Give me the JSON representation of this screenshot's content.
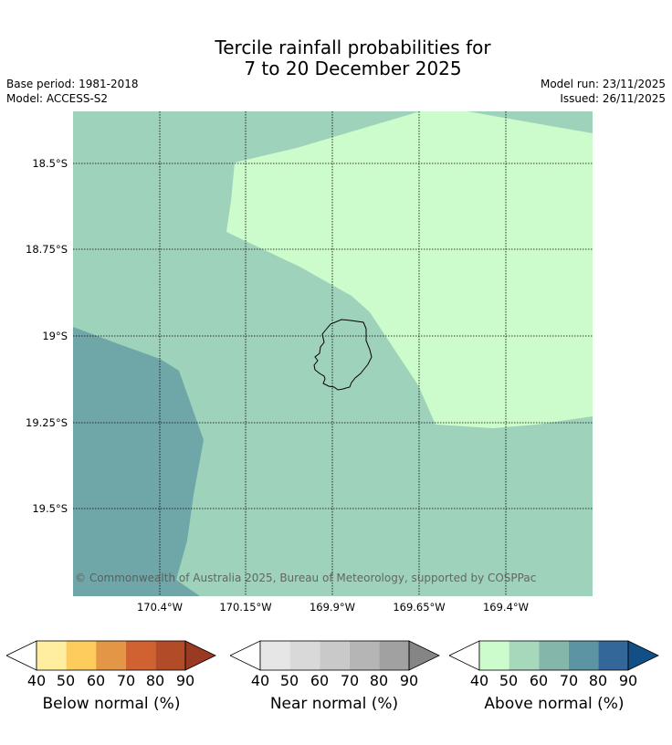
{
  "title": {
    "line1": "Tercile rainfall probabilities for",
    "line2": "7 to 20 December 2025"
  },
  "meta": {
    "base_period": "Base period: 1981-2018",
    "model": "Model: ACCESS-S2",
    "model_run": "Model run: 23/11/2025",
    "issued": "Issued: 26/11/2025"
  },
  "map": {
    "background_color": "#9fd2bb",
    "region_colors": {
      "light_green": "#ccfccb",
      "mid_teal": "#6fa7a8",
      "base": "#9fd2bb"
    },
    "lat_labels": [
      "18.5°S",
      "18.75°S",
      "19°S",
      "19.25°S",
      "19.5°S"
    ],
    "lon_labels": [
      "170.4°W",
      "170.15°W",
      "169.9°W",
      "169.65°W",
      "169.4°W"
    ],
    "copyright": "© Commonwealth of Australia 2025, Bureau of Meteorology, supported by COSPPac"
  },
  "legends": [
    {
      "label": "Below normal (%)",
      "ticks": [
        "40",
        "50",
        "60",
        "70",
        "80",
        "90"
      ],
      "colors": [
        "#ffeda0",
        "#fecc5c",
        "#e39645",
        "#d06232",
        "#b24b28",
        "#993a22"
      ]
    },
    {
      "label": "Near normal (%)",
      "ticks": [
        "40",
        "50",
        "60",
        "70",
        "80",
        "90"
      ],
      "colors": [
        "#e6e6e6",
        "#d9d9d9",
        "#c9c9c9",
        "#b5b5b5",
        "#a1a1a1",
        "#858585"
      ]
    },
    {
      "label": "Above normal (%)",
      "ticks": [
        "40",
        "50",
        "60",
        "70",
        "80",
        "90"
      ],
      "colors": [
        "#ccfccb",
        "#a6d9bc",
        "#84b6aa",
        "#5c94a3",
        "#336699",
        "#134f87"
      ]
    }
  ]
}
